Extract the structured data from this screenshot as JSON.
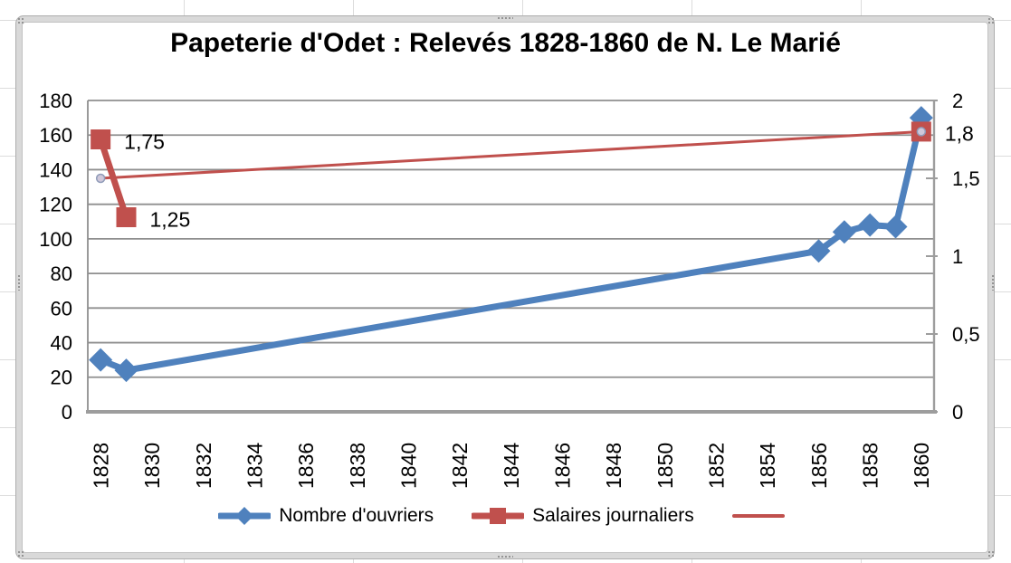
{
  "chart_data": {
    "type": "line",
    "title": "Papeterie d'Odet : Relevés 1828-1860 de N. Le Marié",
    "x_axis": {
      "first_category": 1828,
      "last_category": 1860,
      "category_count": 33,
      "tick_labels": [
        "1828",
        "1830",
        "1832",
        "1834",
        "1836",
        "1838",
        "1840",
        "1842",
        "1844",
        "1846",
        "1848",
        "1850",
        "1852",
        "1854",
        "1856",
        "1858",
        "1860"
      ]
    },
    "y_axis_left": {
      "min": 0,
      "max": 180,
      "tick_labels": [
        "180",
        "160",
        "140",
        "120",
        "100",
        "80",
        "60",
        "40",
        "20",
        "0"
      ],
      "tick_values": [
        180,
        160,
        140,
        120,
        100,
        80,
        60,
        40,
        20,
        0
      ]
    },
    "y_axis_right": {
      "min": 0,
      "max": 2,
      "tick_labels": [
        "2",
        "1,5",
        "1",
        "0,5",
        "0"
      ],
      "tick_values": [
        2,
        1.5,
        1,
        0.5,
        0
      ]
    },
    "gridlines": "horizontal",
    "legend_position": "bottom",
    "colors": {
      "series_blue": "#4F81BD",
      "series_red": "#C0504D",
      "gridline": "#8f8f8f",
      "axis_line": "#9d9d9d",
      "circle_marker_fill": "#cfc8da",
      "circle_marker_stroke": "#8f9bb8"
    },
    "series": [
      {
        "name": "Nombre d'ouvriers",
        "axis": "left",
        "marker": "diamond",
        "color": "#4F81BD",
        "line_width": 7,
        "connect_gaps": true,
        "points": [
          {
            "x": 1828,
            "y": 30
          },
          {
            "x": 1829,
            "y": 24
          },
          {
            "x": 1856,
            "y": 93
          },
          {
            "x": 1857,
            "y": 104
          },
          {
            "x": 1858,
            "y": 108
          },
          {
            "x": 1859,
            "y": 107
          },
          {
            "x": 1860,
            "y": 170
          }
        ]
      },
      {
        "name": "Salaires journaliers",
        "axis": "right",
        "marker": "square",
        "color": "#C0504D",
        "line_width": 7,
        "connect_gaps": false,
        "points": [
          {
            "x": 1828,
            "y": 1.75,
            "label": "1,75"
          },
          {
            "x": 1829,
            "y": 1.25,
            "label": "1,25"
          },
          {
            "x": 1860,
            "y": 1.8,
            "label": "1,8"
          }
        ]
      },
      {
        "name": "",
        "axis": "right",
        "marker": "circle",
        "color": "#C0504D",
        "line_width": 3,
        "connect_gaps": true,
        "points": [
          {
            "x": 1828,
            "y": 1.5
          },
          {
            "x": 1860,
            "y": 1.8
          }
        ]
      }
    ]
  }
}
